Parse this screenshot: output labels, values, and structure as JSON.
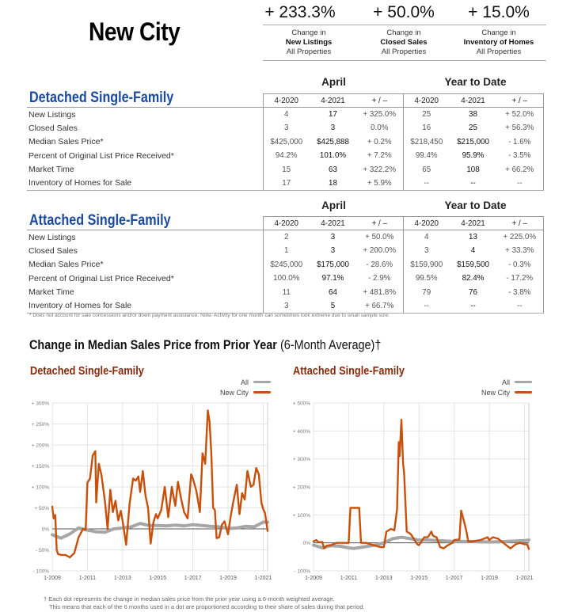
{
  "header": {
    "title": "New City",
    "kpis": [
      {
        "value": "+ 233.3%",
        "line1": "Change in",
        "line2": "New Listings",
        "line3": "All Properties"
      },
      {
        "value": "+ 50.0%",
        "line1": "Change in",
        "line2": "Closed Sales",
        "line3": "All Properties"
      },
      {
        "value": "+ 15.0%",
        "line1": "Change in",
        "line2": "Inventory of Homes",
        "line3": "All Properties"
      }
    ]
  },
  "tables": {
    "group_labels": {
      "month": "April",
      "ytd": "Year to Date"
    },
    "columns": [
      "4-2020",
      "4-2021",
      "+ / –",
      "4-2020",
      "4-2021",
      "+ / –"
    ],
    "detached": {
      "title": "Detached Single-Family",
      "rows": [
        {
          "label": "New Listings",
          "m_prev": "4",
          "m_cur": "17",
          "m_chg": "+ 325.0%",
          "y_prev": "25",
          "y_cur": "38",
          "y_chg": "+ 52.0%"
        },
        {
          "label": "Closed Sales",
          "m_prev": "3",
          "m_cur": "3",
          "m_chg": "0.0%",
          "y_prev": "16",
          "y_cur": "25",
          "y_chg": "+ 56.3%"
        },
        {
          "label": "Median Sales Price*",
          "m_prev": "$425,000",
          "m_cur": "$425,888",
          "m_chg": "+ 0.2%",
          "y_prev": "$218,450",
          "y_cur": "$215,000",
          "y_chg": "- 1.6%"
        },
        {
          "label": "Percent of Original List Price Received*",
          "m_prev": "94.2%",
          "m_cur": "101.0%",
          "m_chg": "+ 7.2%",
          "y_prev": "99.4%",
          "y_cur": "95.9%",
          "y_chg": "- 3.5%"
        },
        {
          "label": "Market Time",
          "m_prev": "15",
          "m_cur": "63",
          "m_chg": "+ 322.2%",
          "y_prev": "65",
          "y_cur": "108",
          "y_chg": "+ 66.2%"
        },
        {
          "label": "Inventory of Homes for Sale",
          "m_prev": "17",
          "m_cur": "18",
          "m_chg": "+ 5.9%",
          "y_prev": "--",
          "y_cur": "--",
          "y_chg": "--"
        }
      ]
    },
    "attached": {
      "title": "Attached Single-Family",
      "rows": [
        {
          "label": "New Listings",
          "m_prev": "2",
          "m_cur": "3",
          "m_chg": "+ 50.0%",
          "y_prev": "4",
          "y_cur": "13",
          "y_chg": "+ 225.0%"
        },
        {
          "label": "Closed Sales",
          "m_prev": "1",
          "m_cur": "3",
          "m_chg": "+ 200.0%",
          "y_prev": "3",
          "y_cur": "4",
          "y_chg": "+ 33.3%"
        },
        {
          "label": "Median Sales Price*",
          "m_prev": "$245,000",
          "m_cur": "$175,000",
          "m_chg": "- 28.6%",
          "y_prev": "$159,900",
          "y_cur": "$159,500",
          "y_chg": "- 0.3%"
        },
        {
          "label": "Percent of Original List Price Received*",
          "m_prev": "100.0%",
          "m_cur": "97.1%",
          "m_chg": "- 2.9%",
          "y_prev": "99.5%",
          "y_cur": "82.4%",
          "y_chg": "- 17.2%"
        },
        {
          "label": "Market Time",
          "m_prev": "11",
          "m_cur": "64",
          "m_chg": "+ 481.8%",
          "y_prev": "79",
          "y_cur": "76",
          "y_chg": "- 3.8%"
        },
        {
          "label": "Inventory of Homes for Sale",
          "m_prev": "3",
          "m_cur": "5",
          "m_chg": "+ 66.7%",
          "y_prev": "--",
          "y_cur": "--",
          "y_chg": "--"
        }
      ]
    },
    "footnote": "* Does not account for sale concessions and/or down payment assistance. Note: Activity for one month can sometimes look extreme due to small sample size."
  },
  "charts_section": {
    "heading": "Change in Median Sales Price from Prior Year",
    "heading_sub": "(6-Month Average)†",
    "note_line1": "† Each dot represents the change in median sales price from the prior year using a 6-month weighted average.",
    "note_line2": "This means that each of the 6 months used in a dot are proportioned according to their share of sales during that period.",
    "colors": {
      "all": "#a6a6a6",
      "city": "#c8500a",
      "zero_line": "#555555",
      "grid": "#e3e3e3"
    }
  },
  "chart_data": [
    {
      "type": "line",
      "title": "Detached Single-Family",
      "xlabel": "",
      "ylabel": "",
      "x_ticks": [
        "1-2009",
        "1-2011",
        "1-2013",
        "1-2015",
        "1-2017",
        "1-2019",
        "1-2021"
      ],
      "y_ticks": [
        "+ 300%",
        "+ 250%",
        "+ 200%",
        "+ 150%",
        "+ 100%",
        "+ 50%",
        "0%",
        "- 50%",
        "- 100%"
      ],
      "ylim": [
        -100,
        300
      ],
      "xlim": [
        2009.0,
        2021.25
      ],
      "legend": [
        "All",
        "New City"
      ],
      "legend_position": "top-right",
      "grid": true,
      "series": [
        {
          "name": "All",
          "x": [
            2009.0,
            2009.5,
            2010.0,
            2010.5,
            2011.0,
            2011.5,
            2012.0,
            2012.5,
            2013.0,
            2013.5,
            2014.0,
            2014.5,
            2015.0,
            2015.5,
            2016.0,
            2016.5,
            2017.0,
            2017.5,
            2018.0,
            2018.5,
            2019.0,
            2019.5,
            2020.0,
            2020.5,
            2021.0,
            2021.25
          ],
          "values": [
            -14,
            -22,
            -12,
            2,
            -3,
            -7,
            -8,
            0,
            2,
            5,
            13,
            8,
            8,
            7,
            9,
            7,
            10,
            8,
            6,
            5,
            1,
            2,
            6,
            5,
            16,
            16
          ]
        },
        {
          "name": "New City",
          "x": [
            2009.0,
            2009.08,
            2009.17,
            2009.25,
            2009.33,
            2009.5,
            2009.75,
            2010.0,
            2010.25,
            2010.5,
            2010.75,
            2010.9,
            2011.0,
            2011.15,
            2011.3,
            2011.45,
            2011.5,
            2011.65,
            2011.8,
            2012.0,
            2012.15,
            2012.3,
            2012.45,
            2012.6,
            2012.75,
            2012.9,
            2013.0,
            2013.2,
            2013.4,
            2013.6,
            2013.75,
            2013.9,
            2014.0,
            2014.15,
            2014.3,
            2014.45,
            2014.6,
            2014.75,
            2014.9,
            2015.0,
            2015.2,
            2015.4,
            2015.6,
            2015.8,
            2016.0,
            2016.15,
            2016.3,
            2016.5,
            2016.7,
            2016.9,
            2017.0,
            2017.2,
            2017.4,
            2017.55,
            2017.7,
            2017.85,
            2017.95,
            2018.05,
            2018.15,
            2018.25,
            2018.35,
            2018.5,
            2018.65,
            2018.8,
            2019.0,
            2019.15,
            2019.3,
            2019.5,
            2019.65,
            2019.8,
            2019.95,
            2020.1,
            2020.3,
            2020.45,
            2020.6,
            2020.75,
            2020.9,
            2021.0,
            2021.1,
            2021.25
          ],
          "values": [
            53,
            25,
            33,
            -50,
            -60,
            -62,
            -62,
            -68,
            -58,
            -20,
            0,
            -2,
            110,
            120,
            175,
            185,
            63,
            155,
            128,
            65,
            0,
            93,
            40,
            67,
            20,
            43,
            20,
            -38,
            60,
            120,
            115,
            125,
            88,
            138,
            80,
            50,
            -35,
            15,
            35,
            25,
            45,
            100,
            28,
            100,
            55,
            112,
            78,
            40,
            25,
            130,
            120,
            90,
            40,
            180,
            155,
            282,
            255,
            180,
            50,
            45,
            -22,
            -20,
            10,
            18,
            -13,
            30,
            65,
            105,
            35,
            85,
            70,
            138,
            100,
            105,
            145,
            130,
            62,
            48,
            38,
            -5
          ]
        }
      ]
    },
    {
      "type": "line",
      "title": "Attached Single-Family",
      "xlabel": "",
      "ylabel": "",
      "x_ticks": [
        "1-2009",
        "1-2011",
        "1-2013",
        "1-2015",
        "1-2017",
        "1-2019",
        "1-2021"
      ],
      "y_ticks": [
        "+ 500%",
        "+ 400%",
        "+ 300%",
        "+ 200%",
        "+ 100%",
        "0%",
        "- 100%"
      ],
      "ylim": [
        -100,
        500
      ],
      "xlim": [
        2009.0,
        2021.25
      ],
      "legend": [
        "All",
        "New City"
      ],
      "legend_position": "top-right",
      "grid": true,
      "series": [
        {
          "name": "All",
          "x": [
            2009.0,
            2009.5,
            2010.0,
            2010.5,
            2011.0,
            2011.3,
            2011.8,
            2012.5,
            2013.0,
            2013.5,
            2014.0,
            2014.5,
            2015.0,
            2015.5,
            2016.0,
            2017.0,
            2018.0,
            2019.0,
            2020.0,
            2021.0,
            2021.25
          ],
          "values": [
            -8,
            -18,
            -10,
            -12,
            -18,
            -20,
            -15,
            -8,
            0,
            15,
            20,
            15,
            10,
            10,
            8,
            5,
            5,
            3,
            5,
            8,
            10
          ]
        },
        {
          "name": "New City",
          "x": [
            2009.0,
            2009.15,
            2009.3,
            2009.5,
            2009.6,
            2009.75,
            2010.0,
            2010.3,
            2010.6,
            2011.0,
            2011.1,
            2011.6,
            2011.7,
            2012.0,
            2012.5,
            2012.8,
            2013.0,
            2013.15,
            2013.4,
            2013.6,
            2013.75,
            2013.85,
            2013.9,
            2014.0,
            2014.1,
            2014.15,
            2014.3,
            2014.45,
            2014.55,
            2014.9,
            2015.0,
            2015.3,
            2015.5,
            2015.7,
            2015.8,
            2016.0,
            2016.2,
            2016.4,
            2016.6,
            2016.9,
            2017.0,
            2017.3,
            2017.4,
            2017.55,
            2017.7,
            2017.8,
            2018.0,
            2018.5,
            2018.9,
            2019.0,
            2019.2,
            2019.5,
            2019.8,
            2020.0,
            2020.2,
            2020.5,
            2020.75,
            2021.0,
            2021.15,
            2021.25
          ],
          "values": [
            5,
            10,
            2,
            3,
            -20,
            -10,
            -8,
            0,
            0,
            0,
            125,
            125,
            0,
            0,
            -10,
            -15,
            -15,
            40,
            50,
            45,
            120,
            360,
            310,
            440,
            280,
            250,
            40,
            35,
            30,
            -5,
            -8,
            20,
            20,
            40,
            25,
            20,
            -15,
            -20,
            -10,
            0,
            10,
            12,
            115,
            80,
            40,
            5,
            5,
            10,
            20,
            10,
            20,
            15,
            0,
            -10,
            -20,
            -5,
            0,
            -5,
            -5,
            -22
          ]
        }
      ]
    }
  ]
}
